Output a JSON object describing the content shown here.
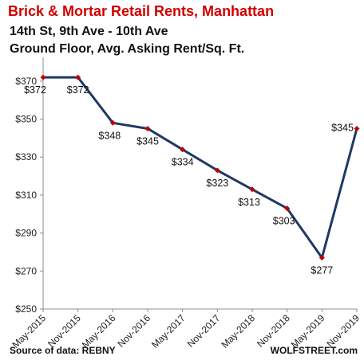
{
  "header": {
    "title": "Brick & Mortar Retail Rents, Manhattan",
    "subtitle_line1": "14th St, 9th Ave - 10th Ave",
    "subtitle_line2": "Ground Floor, Avg. Asking Rent/Sq. Ft."
  },
  "footer": {
    "source": "Source of data: REBNY",
    "brand": "WOLFSTREET.com"
  },
  "colors": {
    "line": "#1f3864",
    "marker": "#c00000",
    "title": "#d10000",
    "axis": "#8c8c8c"
  },
  "chart_data": {
    "type": "line",
    "categories": [
      "May-2015",
      "Nov-2015",
      "May-2016",
      "Nov-2016",
      "May-2017",
      "Nov-2017",
      "May-2018",
      "Nov-2018",
      "May-2019",
      "Nov-2019"
    ],
    "series": [
      {
        "values": [
          372,
          372,
          348,
          345,
          334,
          323,
          313,
          303,
          277,
          345
        ]
      }
    ],
    "data_labels": [
      "$372",
      "$372",
      "$348",
      "$345",
      "$334",
      "$323",
      "$313",
      "$303",
      "$277",
      "$345"
    ],
    "y_ticks": [
      250,
      270,
      290,
      310,
      330,
      350,
      370
    ],
    "y_tick_labels": [
      "$250",
      "$270",
      "$290",
      "$310",
      "$330",
      "$350",
      "$370"
    ],
    "ylim": [
      250,
      380
    ],
    "grid": false,
    "legend": "none"
  }
}
